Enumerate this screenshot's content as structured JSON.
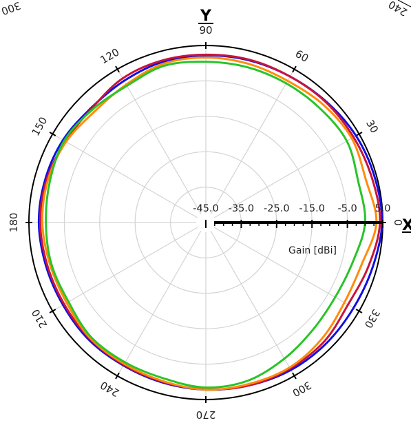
{
  "chart_data": {
    "type": "line",
    "subtype": "polar",
    "radial_axis": {
      "label": "Gain [dBi]",
      "ticks": [
        "-45.0",
        "-35.0",
        "-25.0",
        "-15.0",
        "-5.0",
        "5.0"
      ],
      "range": [
        -45,
        5
      ],
      "direction": "0 deg to the right, angles increase counter-clockwise"
    },
    "angular_ticks": [
      "0",
      "30",
      "60",
      "90",
      "120",
      "150",
      "180",
      "210",
      "240",
      "270",
      "300",
      "330"
    ],
    "axis_letters": {
      "y": "Y",
      "x": "X"
    },
    "cut_labels": [
      "300",
      "240"
    ],
    "grid": true,
    "angles_deg": [
      0,
      15,
      30,
      45,
      60,
      75,
      90,
      105,
      120,
      135,
      150,
      165,
      180,
      195,
      210,
      225,
      240,
      255,
      270,
      285,
      300,
      315,
      330,
      345
    ],
    "series": [
      {
        "color": "#1010e0",
        "gain_dbi": [
          4.8,
          4.4,
          4.0,
          3.2,
          2.6,
          2.4,
          2.2,
          2.0,
          1.2,
          0.8,
          1.6,
          2.0,
          2.2,
          1.8,
          1.6,
          1.8,
          1.6,
          1.8,
          2.2,
          2.6,
          3.1,
          3.2,
          3.2,
          3.8
        ]
      },
      {
        "color": "#c8143c",
        "gain_dbi": [
          4.2,
          3.6,
          3.2,
          3.0,
          2.6,
          2.6,
          2.4,
          2.4,
          2.0,
          0.6,
          0.8,
          1.6,
          1.8,
          1.4,
          1.2,
          1.4,
          1.4,
          1.6,
          2.1,
          2.6,
          2.6,
          2.4,
          1.4,
          2.6
        ]
      },
      {
        "color": "#ff8c0a",
        "gain_dbi": [
          3.2,
          1.8,
          2.6,
          2.0,
          1.2,
          1.4,
          1.6,
          1.4,
          0.0,
          -0.6,
          0.6,
          1.2,
          1.2,
          0.6,
          0.4,
          1.2,
          1.1,
          1.4,
          2.2,
          2.2,
          2.3,
          1.4,
          0.2,
          0.6
        ]
      },
      {
        "color": "#28c428",
        "gain_dbi": [
          0.0,
          -0.4,
          1.0,
          0.6,
          0.4,
          0.4,
          0.4,
          0.8,
          -0.4,
          0.2,
          1.2,
          0.6,
          0.2,
          0.2,
          -0.2,
          0.8,
          0.6,
          0.6,
          1.6,
          1.2,
          -0.6,
          -2.2,
          -2.8,
          -2.0
        ]
      }
    ]
  }
}
